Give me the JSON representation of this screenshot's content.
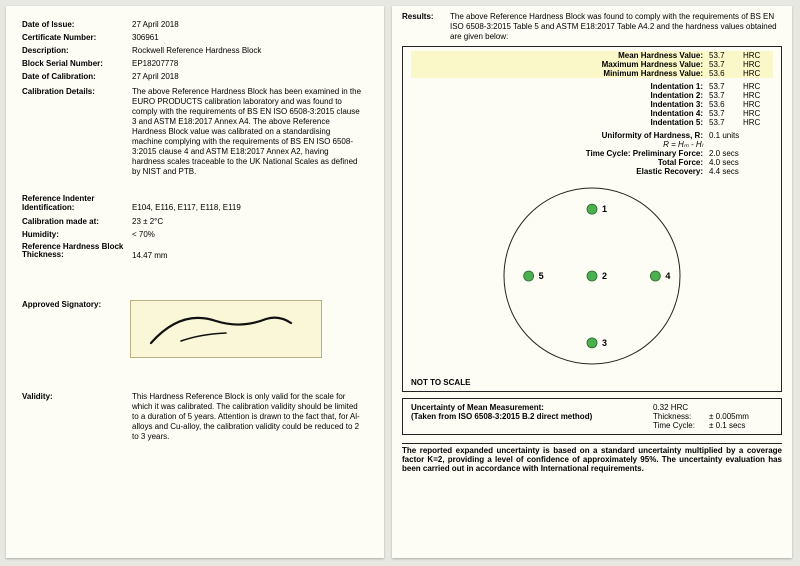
{
  "background_color": "#e8e8e2",
  "page_color": "#fdfdf5",
  "highlight_color": "#faf7c8",
  "signature_bg": "#faf7d8",
  "left": {
    "date_issue_label": "Date of Issue:",
    "date_issue": "27 April 2018",
    "cert_no_label": "Certificate Number:",
    "cert_no": "306961",
    "desc_label": "Description:",
    "desc": "Rockwell Reference Hardness Block",
    "serial_label": "Block Serial Number:",
    "serial": "EP18207778",
    "date_cal_label": "Date of Calibration:",
    "date_cal": "27 April 2018",
    "cal_details_label": "Calibration Details:",
    "cal_details": "The above Reference Hardness Block has been examined in the EURO PRODUCTS calibration laboratory and was found to comply with the requirements of BS EN ISO 6508-3:2015 clause 3 and ASTM E18:2017 Annex A4. The above Reference Hardness Block value was calibrated on a standardising machine complying with the requirements of BS EN ISO 6508-3:2015 clause 4 and ASTM E18:2017 Annex A2, having hardness scales traceable to the UK National Scales as defined by NIST and PTB.",
    "ref_ind_label": "Reference Indenter Identification:",
    "ref_ind": "E104, E116, E117, E118, E119",
    "cal_at_label": "Calibration made at:",
    "cal_at": "23 ± 2°C",
    "humidity_label": "Humidity:",
    "humidity": "< 70%",
    "thick_label": "Reference Hardness Block Thickness:",
    "thick": "14.47 mm",
    "sig_label": "Approved Signatory:",
    "validity_label": "Validity:",
    "validity": "This Hardness Reference Block is only valid for the scale for which it was calibrated. The calibration validity should be limited to a duration of 5 years. Attention is drawn to the fact that, for Al-alloys and Cu-alloy, the calibration validity could be reduced to 2 to 3 years."
  },
  "right": {
    "results_label": "Results:",
    "results_text": "The above Reference Hardness Block was found to comply with the requirements of BS EN ISO 6508-3:2015 Table 5 and ASTM E18:2017 Table A4.2 and the hardness values obtained are given below:",
    "unit": "HRC",
    "summary": [
      {
        "label": "Mean Hardness Value:",
        "value": "53.7",
        "hi": true
      },
      {
        "label": "Maximum Hardness Value:",
        "value": "53.7",
        "hi": true
      },
      {
        "label": "Minimum Hardness Value:",
        "value": "53.6",
        "hi": true
      }
    ],
    "indents": [
      {
        "label": "Indentation 1:",
        "value": "53.7"
      },
      {
        "label": "Indentation 2:",
        "value": "53.7"
      },
      {
        "label": "Indentation 3:",
        "value": "53.6"
      },
      {
        "label": "Indentation 4:",
        "value": "53.7"
      },
      {
        "label": "Indentation 5:",
        "value": "53.7"
      }
    ],
    "uniformity_label": "Uniformity of Hardness, R:",
    "uniformity_value": "0.1 units",
    "uniformity_sub": "R = Hₘ - Hₗ",
    "prelim_label": "Time Cycle:  Preliminary Force:",
    "prelim_value": "2.0 secs",
    "total_label": "Total Force:",
    "total_value": "4.0 secs",
    "elastic_label": "Elastic Recovery:",
    "elastic_value": "4.4 secs",
    "not_scale": "NOT TO SCALE",
    "diagram": {
      "points": [
        {
          "n": "1",
          "x": 0.5,
          "y": 0.12
        },
        {
          "n": "2",
          "x": 0.5,
          "y": 0.5
        },
        {
          "n": "3",
          "x": 0.5,
          "y": 0.88
        },
        {
          "n": "4",
          "x": 0.86,
          "y": 0.5
        },
        {
          "n": "5",
          "x": 0.14,
          "y": 0.5
        }
      ],
      "point_color": "#4caf50",
      "circle_color": "#222222"
    },
    "uncertainty": {
      "mean_label": "Uncertainty of Mean Measurement:",
      "mean_value": "0.32 HRC",
      "method": "(Taken from ISO 6508-3:2015 B.2 direct method)",
      "thick_label": "Thickness:",
      "thick_value": "± 0.005mm",
      "tc_label": "Time Cycle:",
      "tc_value": "± 0.1 secs"
    },
    "footnote": "The reported expanded uncertainty is based on a standard uncertainty multiplied by a coverage factor K=2, providing a level of confidence of approximately 95%. The uncertainty evaluation has been carried out in accordance with International requirements."
  }
}
